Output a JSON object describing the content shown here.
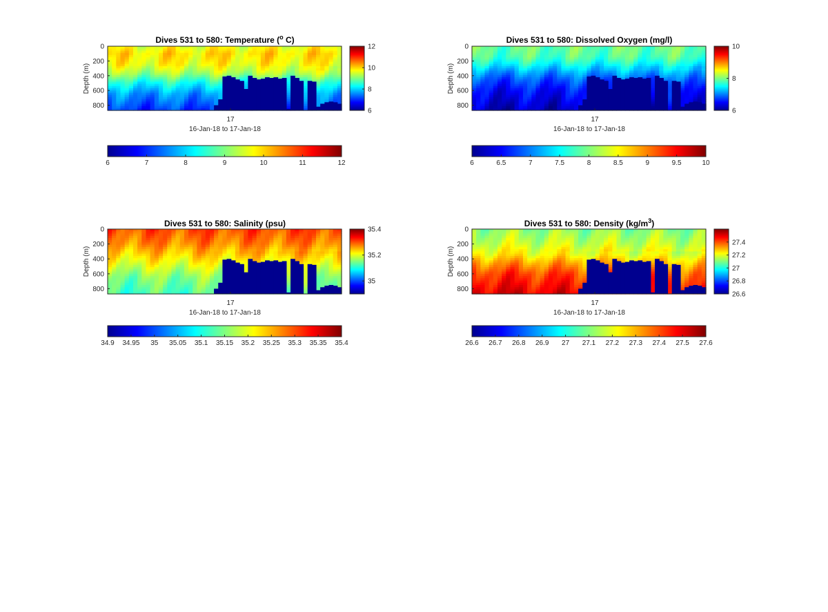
{
  "chart_data": [
    {
      "type": "heatmap",
      "title_main": "Dives 531 to 580: Temperature (",
      "title_sup": "o",
      "title_tail": " C)",
      "ylabel": "Depth (m)",
      "xtick": "17",
      "xlabel": "16-Jan-18 to 17-Jan-18",
      "ylim": [
        0,
        870
      ],
      "yticks": [
        {
          "v": 0,
          "label": "0"
        },
        {
          "v": 200,
          "label": "200"
        },
        {
          "v": 400,
          "label": "400"
        },
        {
          "v": 600,
          "label": "600"
        },
        {
          "v": 800,
          "label": "800"
        }
      ],
      "clim": [
        6,
        12
      ],
      "cbar_ticks": [
        {
          "v": 6,
          "label": "6"
        },
        {
          "v": 8,
          "label": "8"
        },
        {
          "v": 10,
          "label": "10"
        },
        {
          "v": 12,
          "label": "12"
        }
      ],
      "hbar_ticks": [
        {
          "v": 6,
          "label": "6"
        },
        {
          "v": 7,
          "label": "7"
        },
        {
          "v": 8,
          "label": "8"
        },
        {
          "v": 9,
          "label": "9"
        },
        {
          "v": 10,
          "label": "10"
        },
        {
          "v": 11,
          "label": "11"
        },
        {
          "v": 12,
          "label": "12"
        }
      ],
      "profile": [
        [
          0,
          9.6
        ],
        [
          100,
          9.9
        ],
        [
          250,
          9.7
        ],
        [
          380,
          9.1
        ],
        [
          500,
          8.3
        ],
        [
          650,
          7.6
        ],
        [
          870,
          7.0
        ]
      ],
      "bottom_depth_m": [
        870,
        870,
        870,
        870,
        870,
        870,
        870,
        870,
        870,
        870,
        870,
        870,
        870,
        870,
        870,
        870,
        870,
        870,
        870,
        870,
        870,
        870,
        870,
        870,
        870,
        800,
        720,
        410,
        400,
        420,
        450,
        470,
        580,
        400,
        430,
        450,
        440,
        420,
        430,
        420,
        440,
        430,
        850,
        400,
        430,
        470,
        870,
        470,
        480,
        820,
        780,
        760,
        750,
        760,
        780
      ]
    },
    {
      "type": "heatmap",
      "title_main": "Dives 531 to 580: Dissolved Oxygen (mg/l)",
      "ylabel": "Depth (m)",
      "xtick": "17",
      "xlabel": "16-Jan-18 to 17-Jan-18",
      "ylim": [
        0,
        870
      ],
      "yticks": [
        {
          "v": 0,
          "label": "0"
        },
        {
          "v": 200,
          "label": "200"
        },
        {
          "v": 400,
          "label": "400"
        },
        {
          "v": 600,
          "label": "600"
        },
        {
          "v": 800,
          "label": "800"
        }
      ],
      "clim": [
        6,
        10
      ],
      "cbar_ticks": [
        {
          "v": 6,
          "label": "6"
        },
        {
          "v": 8,
          "label": "8"
        },
        {
          "v": 10,
          "label": "10"
        }
      ],
      "hbar_ticks": [
        {
          "v": 6,
          "label": "6"
        },
        {
          "v": 6.5,
          "label": "6.5"
        },
        {
          "v": 7,
          "label": "7"
        },
        {
          "v": 7.5,
          "label": "7.5"
        },
        {
          "v": 8,
          "label": "8"
        },
        {
          "v": 8.5,
          "label": "8.5"
        },
        {
          "v": 9,
          "label": "9"
        },
        {
          "v": 9.5,
          "label": "9.5"
        },
        {
          "v": 10,
          "label": "10"
        }
      ],
      "profile": [
        [
          0,
          7.9
        ],
        [
          150,
          7.8
        ],
        [
          250,
          7.5
        ],
        [
          350,
          7.1
        ],
        [
          450,
          6.8
        ],
        [
          600,
          6.5
        ],
        [
          870,
          6.2
        ]
      ],
      "bottom_depth_m": [
        870,
        870,
        870,
        870,
        870,
        870,
        870,
        870,
        870,
        870,
        870,
        870,
        870,
        870,
        870,
        870,
        870,
        870,
        870,
        870,
        870,
        870,
        870,
        870,
        870,
        800,
        720,
        410,
        400,
        420,
        450,
        470,
        580,
        400,
        430,
        450,
        440,
        420,
        430,
        420,
        440,
        430,
        850,
        400,
        430,
        470,
        870,
        470,
        480,
        820,
        780,
        760,
        750,
        760,
        780
      ]
    },
    {
      "type": "heatmap",
      "title_main": "Dives 531 to 580: Salinity (psu)",
      "ylabel": "Depth (m)",
      "xtick": "17",
      "xlabel": "16-Jan-18 to 17-Jan-18",
      "ylim": [
        0,
        870
      ],
      "yticks": [
        {
          "v": 0,
          "label": "0"
        },
        {
          "v": 200,
          "label": "200"
        },
        {
          "v": 400,
          "label": "400"
        },
        {
          "v": 600,
          "label": "600"
        },
        {
          "v": 800,
          "label": "800"
        }
      ],
      "clim": [
        34.9,
        35.4
      ],
      "cbar_ticks": [
        {
          "v": 35,
          "label": "35"
        },
        {
          "v": 35.2,
          "label": "35.2"
        },
        {
          "v": 35.4,
          "label": "35.4"
        }
      ],
      "hbar_ticks": [
        {
          "v": 34.9,
          "label": "34.9"
        },
        {
          "v": 34.95,
          "label": "34.95"
        },
        {
          "v": 35,
          "label": "35"
        },
        {
          "v": 35.05,
          "label": "35.05"
        },
        {
          "v": 35.1,
          "label": "35.1"
        },
        {
          "v": 35.15,
          "label": "35.15"
        },
        {
          "v": 35.2,
          "label": "35.2"
        },
        {
          "v": 35.25,
          "label": "35.25"
        },
        {
          "v": 35.3,
          "label": "35.3"
        },
        {
          "v": 35.35,
          "label": "35.35"
        },
        {
          "v": 35.4,
          "label": "35.4"
        }
      ],
      "profile": [
        [
          0,
          35.3
        ],
        [
          200,
          35.27
        ],
        [
          350,
          35.23
        ],
        [
          500,
          35.19
        ],
        [
          650,
          35.15
        ],
        [
          870,
          35.12
        ]
      ],
      "bottom_depth_m": [
        870,
        870,
        870,
        870,
        870,
        870,
        870,
        870,
        870,
        870,
        870,
        870,
        870,
        870,
        870,
        870,
        870,
        870,
        870,
        870,
        870,
        870,
        870,
        870,
        870,
        800,
        720,
        410,
        400,
        420,
        450,
        470,
        580,
        400,
        430,
        450,
        440,
        420,
        430,
        420,
        440,
        430,
        850,
        400,
        430,
        470,
        870,
        470,
        480,
        820,
        780,
        760,
        750,
        760,
        780
      ]
    },
    {
      "type": "heatmap",
      "title_main": "Dives 531 to 580: Density (kg/m",
      "title_sup": "3",
      "title_tail": ")",
      "ylabel": "Depth (m)",
      "xtick": "17",
      "xlabel": "16-Jan-18 to 17-Jan-18",
      "ylim": [
        0,
        870
      ],
      "yticks": [
        {
          "v": 0,
          "label": "0"
        },
        {
          "v": 200,
          "label": "200"
        },
        {
          "v": 400,
          "label": "400"
        },
        {
          "v": 600,
          "label": "600"
        },
        {
          "v": 800,
          "label": "800"
        }
      ],
      "clim": [
        26.6,
        27.6
      ],
      "cbar_ticks": [
        {
          "v": 26.6,
          "label": "26.6"
        },
        {
          "v": 26.8,
          "label": "26.8"
        },
        {
          "v": 27,
          "label": "27"
        },
        {
          "v": 27.2,
          "label": "27.2"
        },
        {
          "v": 27.4,
          "label": "27.4"
        }
      ],
      "hbar_ticks": [
        {
          "v": 26.6,
          "label": "26.6"
        },
        {
          "v": 26.7,
          "label": "26.7"
        },
        {
          "v": 26.8,
          "label": "26.8"
        },
        {
          "v": 26.9,
          "label": "26.9"
        },
        {
          "v": 27,
          "label": "27"
        },
        {
          "v": 27.1,
          "label": "27.1"
        },
        {
          "v": 27.2,
          "label": "27.2"
        },
        {
          "v": 27.3,
          "label": "27.3"
        },
        {
          "v": 27.4,
          "label": "27.4"
        },
        {
          "v": 27.5,
          "label": "27.5"
        },
        {
          "v": 27.6,
          "label": "27.6"
        }
      ],
      "profile": [
        [
          0,
          27.12
        ],
        [
          200,
          27.18
        ],
        [
          350,
          27.25
        ],
        [
          450,
          27.33
        ],
        [
          600,
          27.43
        ],
        [
          870,
          27.52
        ]
      ],
      "bottom_depth_m": [
        870,
        870,
        870,
        870,
        870,
        870,
        870,
        870,
        870,
        870,
        870,
        870,
        870,
        870,
        870,
        870,
        870,
        870,
        870,
        870,
        870,
        870,
        870,
        870,
        870,
        800,
        720,
        410,
        400,
        420,
        450,
        470,
        580,
        400,
        430,
        450,
        440,
        420,
        430,
        420,
        440,
        430,
        850,
        400,
        430,
        470,
        870,
        470,
        480,
        820,
        780,
        760,
        750,
        760,
        780
      ]
    }
  ]
}
